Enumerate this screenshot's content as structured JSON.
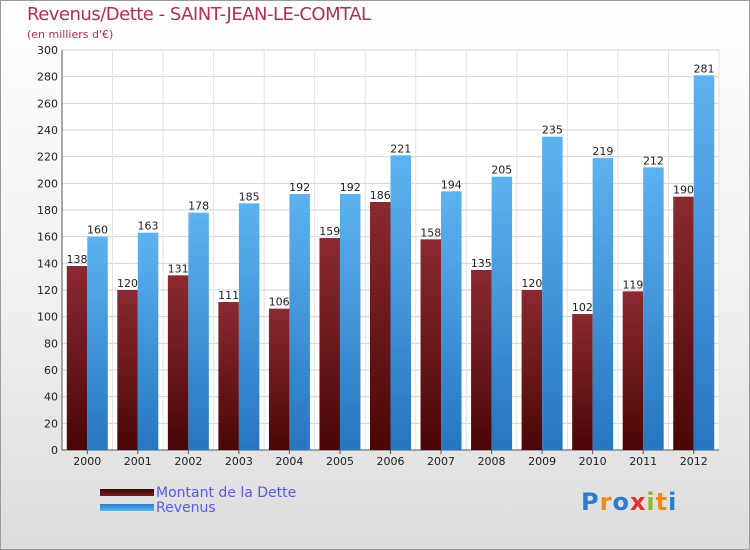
{
  "chart_data": {
    "type": "bar",
    "title": "Revenus/Dette - SAINT-JEAN-LE-COMTAL",
    "subtitle": "(en milliers d'€)",
    "categories": [
      "2000",
      "2001",
      "2002",
      "2003",
      "2004",
      "2005",
      "2006",
      "2007",
      "2008",
      "2009",
      "2010",
      "2011",
      "2012"
    ],
    "series": [
      {
        "name": "Montant de la Dette",
        "color": "#7a1e22",
        "values": [
          138,
          120,
          131,
          111,
          106,
          159,
          186,
          158,
          135,
          120,
          102,
          119,
          190
        ]
      },
      {
        "name": "Revenus",
        "color": "#4aa3e6",
        "values": [
          160,
          163,
          178,
          185,
          192,
          192,
          221,
          194,
          205,
          235,
          219,
          212,
          281
        ]
      }
    ],
    "ylim": [
      0,
      300
    ],
    "yticks": [
      0,
      20,
      40,
      60,
      80,
      100,
      120,
      140,
      160,
      180,
      200,
      220,
      240,
      260,
      280,
      300
    ],
    "grid": true,
    "legend": "bottom-left"
  },
  "logo": {
    "letters": [
      "P",
      "r",
      "o",
      "x",
      "i",
      "t",
      "i"
    ],
    "colors": [
      "#2b7bd0",
      "#f08a1c",
      "#2b7bd0",
      "#e0302f",
      "#8cbc2a",
      "#f08a1c",
      "#2b7bd0"
    ]
  }
}
